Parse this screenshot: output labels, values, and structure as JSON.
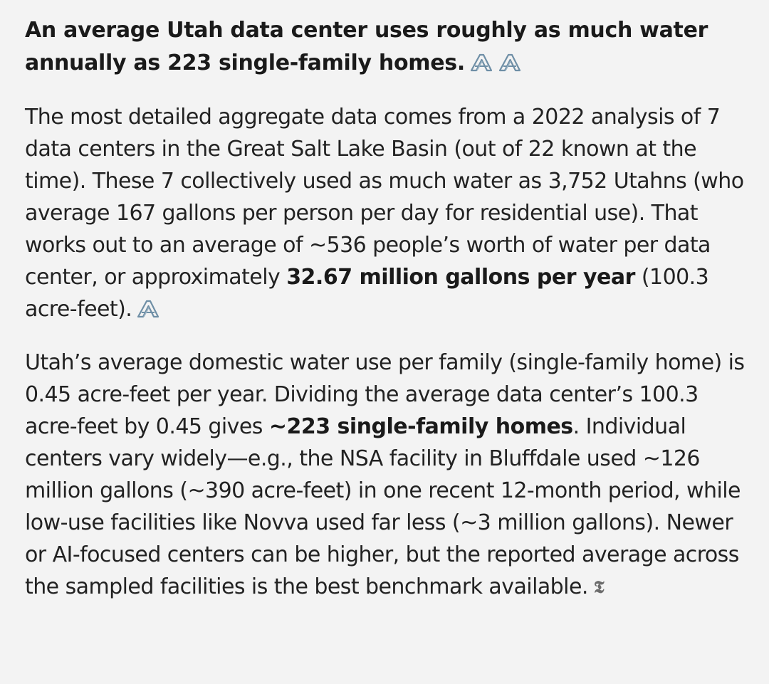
{
  "heading": {
    "text": "An average Utah data center uses roughly as much water annually as 223 single-family homes.",
    "source_icons": [
      "source-logo-icon",
      "source-logo-icon"
    ]
  },
  "paragraph1": {
    "text_before": "The most detailed aggregate data comes from a 2022 analysis of 7 data centers in the Great Salt Lake Basin (out of 22 known at the time). These 7 collectively used as much water as 3,752 Utahns (who average 167 gallons per person per day for residential use). That works out to an average of ~536 people’s worth of water per data center, or approximately ",
    "bold": "32.67 million gallons per year",
    "text_after": " (100.3 acre-feet).",
    "source_icon": "source-logo-icon"
  },
  "paragraph2": {
    "text_before": "Utah’s average domestic water use per family (single-family home) is 0.45 acre-feet per year. Dividing the average data center’s 100.3 acre-feet by 0.45 gives ",
    "bold": "~223 single-family homes",
    "text_after": ". Individual centers vary widely—e.g., the NSA facility in Bluffdale used ~126 million gallons (~390 acre-feet) in one recent 12-month period, while low-use facilities like Novva used far less (~3 million gallons). Newer or AI-focused centers can be higher, but the reported average across the sampled facilities is the best benchmark available.",
    "source_icon": "times-logo-icon",
    "source_glyph": "𝕿"
  },
  "colors": {
    "background": "#f3f3f3",
    "text": "#222222",
    "icon_blue": "#6f8fa6"
  }
}
